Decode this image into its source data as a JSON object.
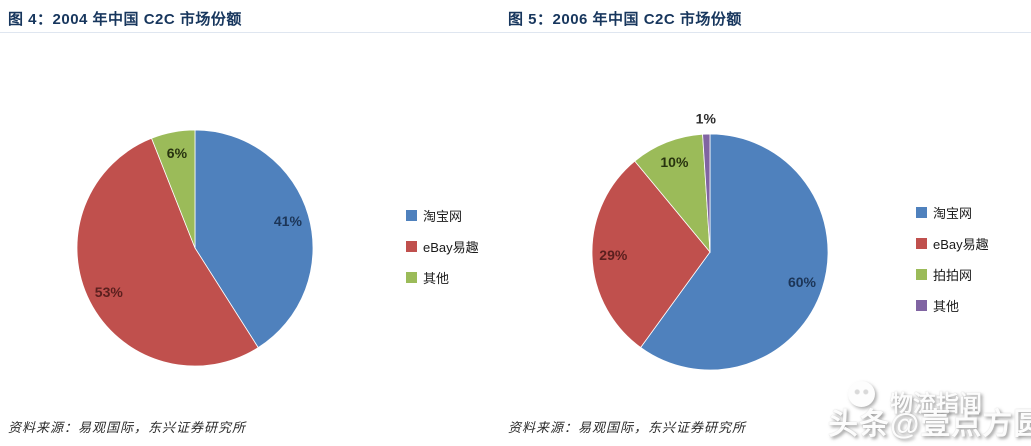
{
  "page": {
    "background": "#ffffff"
  },
  "chart_data": [
    {
      "type": "pie",
      "title": "图 4：2004 年中国 C2C 市场份额",
      "labels": [
        "淘宝网",
        "eBay易趣",
        "其他"
      ],
      "values": [
        41,
        53,
        6
      ],
      "value_suffix": "%",
      "colors": [
        "#4F81BD",
        "#C0504D",
        "#9BBB59"
      ],
      "value_label_colors": [
        "#1C3557",
        "#5B1F1E",
        "#28330F"
      ],
      "start": "12-oclock",
      "direction": "clockwise",
      "legend_position": "right"
    },
    {
      "type": "pie",
      "title": "图 5：2006 年中国 C2C 市场份额",
      "labels": [
        "淘宝网",
        "eBay易趣",
        "拍拍网",
        "其他"
      ],
      "values": [
        60,
        29,
        10,
        1
      ],
      "value_suffix": "%",
      "colors": [
        "#4F81BD",
        "#C0504D",
        "#9BBB59",
        "#8064A2"
      ],
      "value_label_colors": [
        "#1C3557",
        "#5B1F1E",
        "#28330F",
        "#2D2D2D"
      ],
      "start": "12-oclock",
      "direction": "clockwise",
      "legend_position": "right"
    }
  ],
  "sources": [
    "资料来源：易观国际，东兴证券研究所",
    "资料来源：易观国际，东兴证券研究所"
  ],
  "watermark": {
    "brand": "物流指闻",
    "byline": "头条@壹点方圆"
  },
  "colors": {
    "title": "#17365D",
    "divider": "#dfe6f0",
    "legend_text": "#1a1a1a",
    "source_text": "#2b2b2b"
  }
}
